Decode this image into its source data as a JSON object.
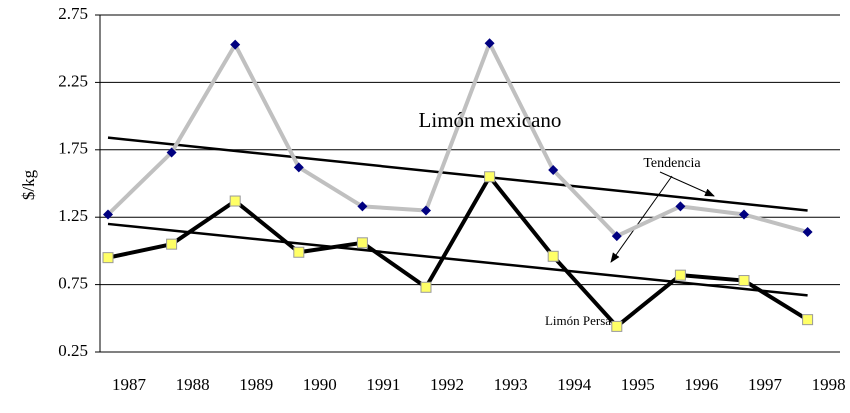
{
  "chart_data": {
    "type": "line",
    "y_label": "$/kg",
    "categories": [
      "1987",
      "1988",
      "1989",
      "1990",
      "1991",
      "1992",
      "1993",
      "1994",
      "1995",
      "1996",
      "1997",
      "1998"
    ],
    "series": [
      {
        "name": "Limón mexicano",
        "color": "#c0c0c0",
        "marker_color": "#000080",
        "marker": "diamond",
        "values": [
          1.27,
          1.73,
          2.53,
          1.62,
          1.33,
          1.3,
          2.54,
          1.6,
          1.11,
          1.33,
          1.27,
          1.14
        ]
      },
      {
        "name": "Limón Persa",
        "color": "#000000",
        "marker_color": "#ffff66",
        "marker": "square",
        "values": [
          0.95,
          1.05,
          1.37,
          0.99,
          1.06,
          0.73,
          1.55,
          0.96,
          0.44,
          0.82,
          0.78,
          0.49
        ]
      }
    ],
    "trend_label": "Tendencia",
    "trend_lines": [
      {
        "color": "#000000",
        "values": [
          1.84,
          1.3
        ]
      },
      {
        "color": "#000000",
        "values": [
          1.2,
          0.67
        ]
      }
    ],
    "ylim": [
      0.25,
      2.75
    ],
    "yticks": [
      0.25,
      0.75,
      1.25,
      1.75,
      2.25,
      2.75
    ],
    "grid": true
  }
}
